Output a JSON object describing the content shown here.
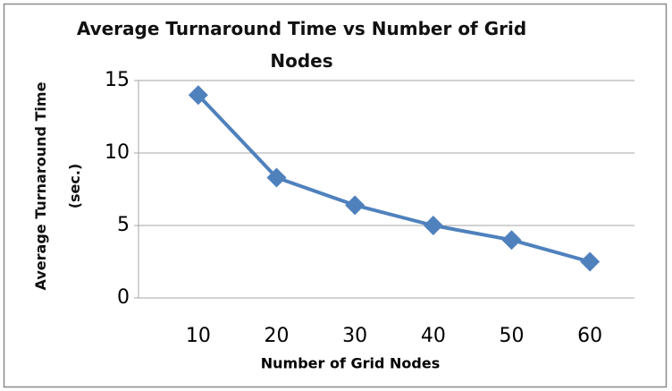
{
  "chart_data": {
    "type": "line",
    "title": "Average Turnaround Time vs Number of Grid Nodes",
    "x_label": "Number of Grid Nodes",
    "y_label": "Average Turnaround Time (sec.)",
    "categories": [
      "10",
      "20",
      "30",
      "40",
      "50",
      "60"
    ],
    "series": [
      {
        "name": "Average Turnaround Time",
        "color": "#4f81bd",
        "values": [
          14,
          8.3,
          6.4,
          5.0,
          4.0,
          2.5
        ]
      }
    ],
    "ylim": [
      0,
      15
    ],
    "yticks": [
      0,
      5,
      10,
      15
    ],
    "grid": true
  }
}
